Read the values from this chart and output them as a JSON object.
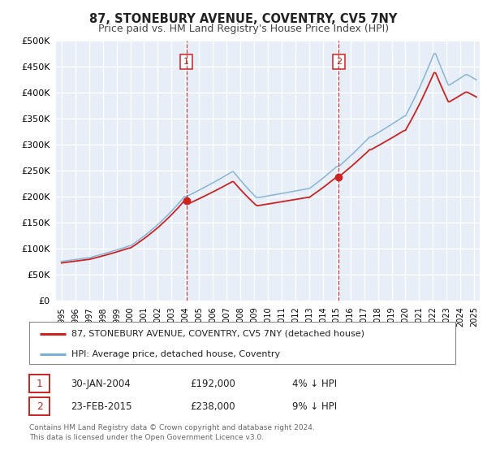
{
  "title": "87, STONEBURY AVENUE, COVENTRY, CV5 7NY",
  "subtitle": "Price paid vs. HM Land Registry's House Price Index (HPI)",
  "title_fontsize": 10.5,
  "subtitle_fontsize": 9,
  "bg_color": "#ffffff",
  "plot_bg_color": "#e8eef8",
  "grid_color": "#ffffff",
  "ylim": [
    0,
    500000
  ],
  "yticks": [
    0,
    50000,
    100000,
    150000,
    200000,
    250000,
    300000,
    350000,
    400000,
    450000,
    500000
  ],
  "ytick_labels": [
    "£0",
    "£50K",
    "£100K",
    "£150K",
    "£200K",
    "£250K",
    "£300K",
    "£350K",
    "£400K",
    "£450K",
    "£500K"
  ],
  "xlim_start": 1994.6,
  "xlim_end": 2025.4,
  "xticks": [
    1995,
    1996,
    1997,
    1998,
    1999,
    2000,
    2001,
    2002,
    2003,
    2004,
    2005,
    2006,
    2007,
    2008,
    2009,
    2010,
    2011,
    2012,
    2013,
    2014,
    2015,
    2016,
    2017,
    2018,
    2019,
    2020,
    2021,
    2022,
    2023,
    2024,
    2025
  ],
  "sale1_x": 2004.08,
  "sale1_y": 192000,
  "sale1_label": "1",
  "sale1_date": "30-JAN-2004",
  "sale1_price": "£192,000",
  "sale1_hpi": "4% ↓ HPI",
  "sale2_x": 2015.15,
  "sale2_y": 238000,
  "sale2_label": "2",
  "sale2_date": "23-FEB-2015",
  "sale2_price": "£238,000",
  "sale2_hpi": "9% ↓ HPI",
  "hpi_color": "#7bafd4",
  "sale_color": "#cc2222",
  "legend_label1": "87, STONEBURY AVENUE, COVENTRY, CV5 7NY (detached house)",
  "legend_label2": "HPI: Average price, detached house, Coventry",
  "footnote1": "Contains HM Land Registry data © Crown copyright and database right 2024.",
  "footnote2": "This data is licensed under the Open Government Licence v3.0."
}
